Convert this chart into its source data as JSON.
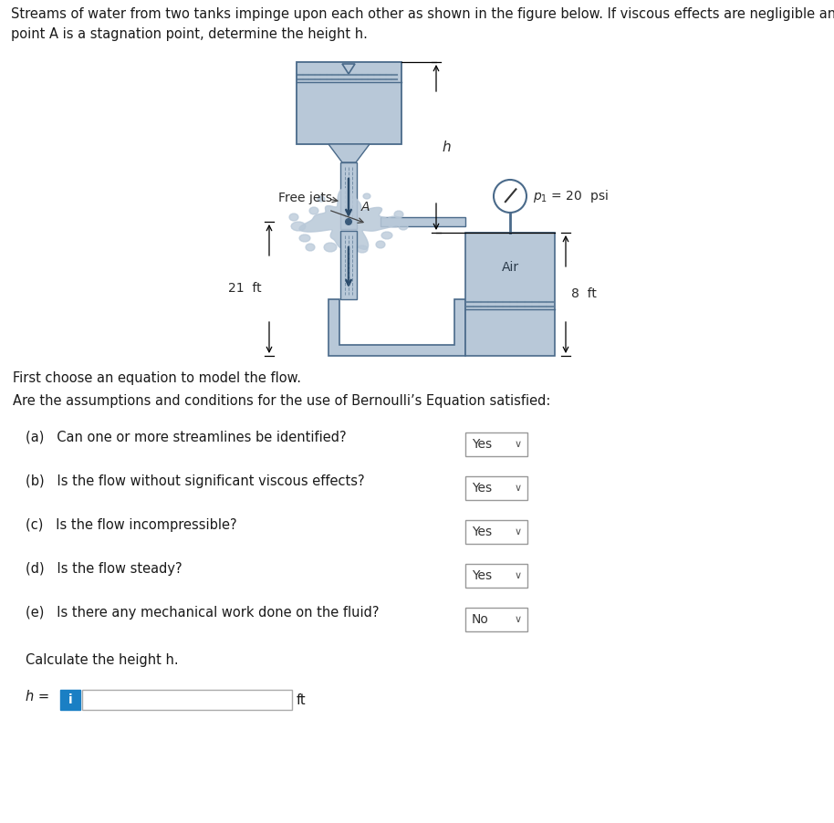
{
  "title_text": "Streams of water from two tanks impinge upon each other as shown in the figure below. If viscous effects are negligible and\npoint A is a stagnation point, determine the height h.",
  "fig_width": 9.14,
  "fig_height": 9.02,
  "bg_color": "#ffffff",
  "light_blue": "#b8c8d8",
  "dark_line": "#4a6a8a",
  "questions": [
    "(a)   Can one or more streamlines be identified?",
    "(b)   Is the flow without significant viscous effects?",
    "(c)   Is the flow incompressible?",
    "(d)   Is the flow steady?",
    "(e)   Is there any mechanical work done on the fluid?"
  ],
  "answers": [
    "Yes",
    "Yes",
    "Yes",
    "Yes",
    "No"
  ],
  "section1": "First choose an equation to model the flow.",
  "section2": "Are the assumptions and conditions for the use of Bernoulli’s Equation satisfied:",
  "calc_text": "Calculate the height h.",
  "h_label": "h =",
  "ft_label": "ft"
}
